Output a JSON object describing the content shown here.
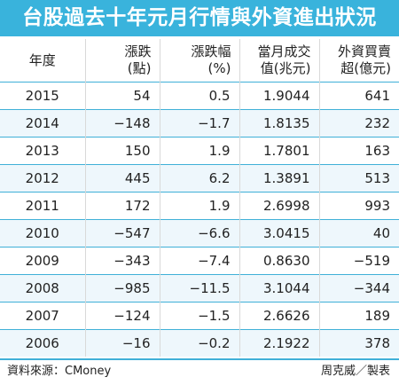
{
  "title": "台股過去十年元月行情與外資進出狀況",
  "chart_data": {
    "type": "table",
    "columns": [
      {
        "line1": "年度",
        "line2": ""
      },
      {
        "line1": "漲跌",
        "line2": "(點)"
      },
      {
        "line1": "漲跌幅",
        "line2": "(%)"
      },
      {
        "line1": "當月成交",
        "line2": "值(兆元)"
      },
      {
        "line1": "外資買賣",
        "line2": "超(億元)"
      }
    ],
    "rows": [
      {
        "year": "2015",
        "change_points": "54",
        "change_pct": "0.5",
        "turnover": "1.9044",
        "foreign_net": "641"
      },
      {
        "year": "2014",
        "change_points": "−148",
        "change_pct": "−1.7",
        "turnover": "1.8135",
        "foreign_net": "232"
      },
      {
        "year": "2013",
        "change_points": "150",
        "change_pct": "1.9",
        "turnover": "1.7801",
        "foreign_net": "163"
      },
      {
        "year": "2012",
        "change_points": "445",
        "change_pct": "6.2",
        "turnover": "1.3891",
        "foreign_net": "513"
      },
      {
        "year": "2011",
        "change_points": "172",
        "change_pct": "1.9",
        "turnover": "2.6998",
        "foreign_net": "993"
      },
      {
        "year": "2010",
        "change_points": "−547",
        "change_pct": "−6.6",
        "turnover": "3.0415",
        "foreign_net": "40"
      },
      {
        "year": "2009",
        "change_points": "−343",
        "change_pct": "−7.4",
        "turnover": "0.8630",
        "foreign_net": "−519"
      },
      {
        "year": "2008",
        "change_points": "−985",
        "change_pct": "−11.5",
        "turnover": "3.1044",
        "foreign_net": "−344"
      },
      {
        "year": "2007",
        "change_points": "−124",
        "change_pct": "−1.5",
        "turnover": "2.6626",
        "foreign_net": "189"
      },
      {
        "year": "2006",
        "change_points": "−16",
        "change_pct": "−0.2",
        "turnover": "2.1922",
        "foreign_net": "378"
      }
    ]
  },
  "footer": {
    "source": "資料來源：CMoney",
    "credit": "周克威／製表"
  },
  "colors": {
    "title_bg": "#39b3dc",
    "row_divider": "#3fb0d8",
    "shaded_row": "#eef7fc"
  }
}
